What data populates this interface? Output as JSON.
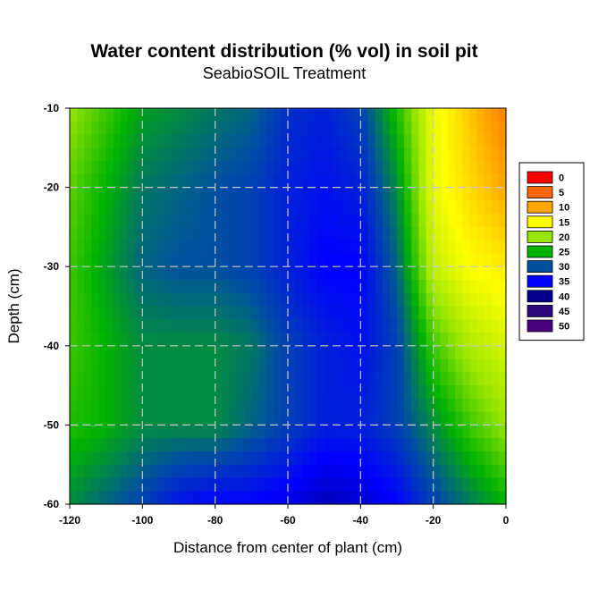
{
  "chart_data": {
    "type": "heatmap",
    "title": "Water content distribution (% vol) in soil pit",
    "subtitle": "SeabioSOIL Treatment",
    "xlabel": "Distance from center of plant (cm)",
    "ylabel": "Depth (cm)",
    "xlim": [
      -120,
      0
    ],
    "ylim": [
      -60,
      -10
    ],
    "x_ticks": [
      -120,
      -100,
      -80,
      -60,
      -40,
      -20,
      0
    ],
    "y_ticks": [
      -10,
      -20,
      -30,
      -40,
      -50,
      -60
    ],
    "grid": true,
    "legend_position": "right",
    "legend": [
      {
        "value": 0,
        "color": "#ff0000"
      },
      {
        "value": 5,
        "color": "#ff6600"
      },
      {
        "value": 10,
        "color": "#ffa500"
      },
      {
        "value": 15,
        "color": "#ffff00"
      },
      {
        "value": 20,
        "color": "#99e600"
      },
      {
        "value": 25,
        "color": "#00b300"
      },
      {
        "value": 30,
        "color": "#0050a0"
      },
      {
        "value": 35,
        "color": "#0000ff"
      },
      {
        "value": 40,
        "color": "#00008b"
      },
      {
        "value": 45,
        "color": "#2a0a7a"
      },
      {
        "value": 50,
        "color": "#4b0082"
      }
    ],
    "x": [
      -120,
      -110,
      -100,
      -90,
      -80,
      -70,
      -60,
      -50,
      -40,
      -30,
      -20,
      -10,
      0
    ],
    "y": [
      -10,
      -20,
      -30,
      -40,
      -50,
      -60
    ],
    "z": [
      [
        20,
        23,
        26,
        27,
        28,
        29,
        32,
        33,
        31,
        24,
        16,
        12,
        7
      ],
      [
        22,
        25,
        28,
        29,
        30,
        31,
        33,
        34,
        33,
        27,
        16,
        13,
        10
      ],
      [
        23,
        26,
        29,
        30,
        30,
        31,
        33,
        35,
        35,
        29,
        18,
        15,
        14
      ],
      [
        23,
        25,
        27,
        27,
        27,
        28,
        31,
        33,
        34,
        31,
        23,
        19,
        17
      ],
      [
        24,
        25,
        27,
        27,
        27,
        29,
        31,
        33,
        33,
        31,
        27,
        23,
        20
      ],
      [
        27,
        29,
        31,
        34,
        35,
        35,
        36,
        38,
        37,
        35,
        31,
        28,
        25
      ]
    ]
  }
}
